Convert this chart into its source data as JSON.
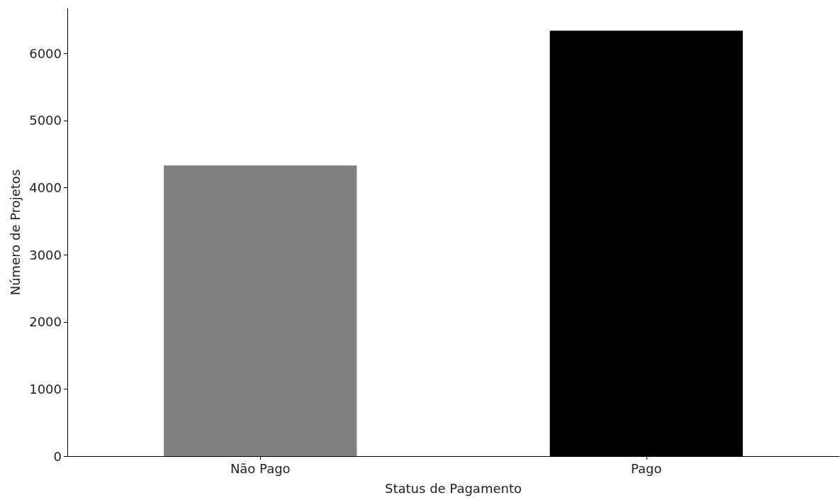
{
  "chart_data": {
    "type": "bar",
    "xlabel": "Status de Pagamento",
    "ylabel": "Número de Projetos",
    "categories": [
      "Não Pago",
      "Pago"
    ],
    "values": [
      4330,
      6340
    ],
    "colors": [
      "#808080",
      "#000000"
    ],
    "ylim": [
      0,
      6670
    ],
    "yticks": [
      0,
      1000,
      2000,
      3000,
      4000,
      5000,
      6000
    ],
    "grid": false
  }
}
